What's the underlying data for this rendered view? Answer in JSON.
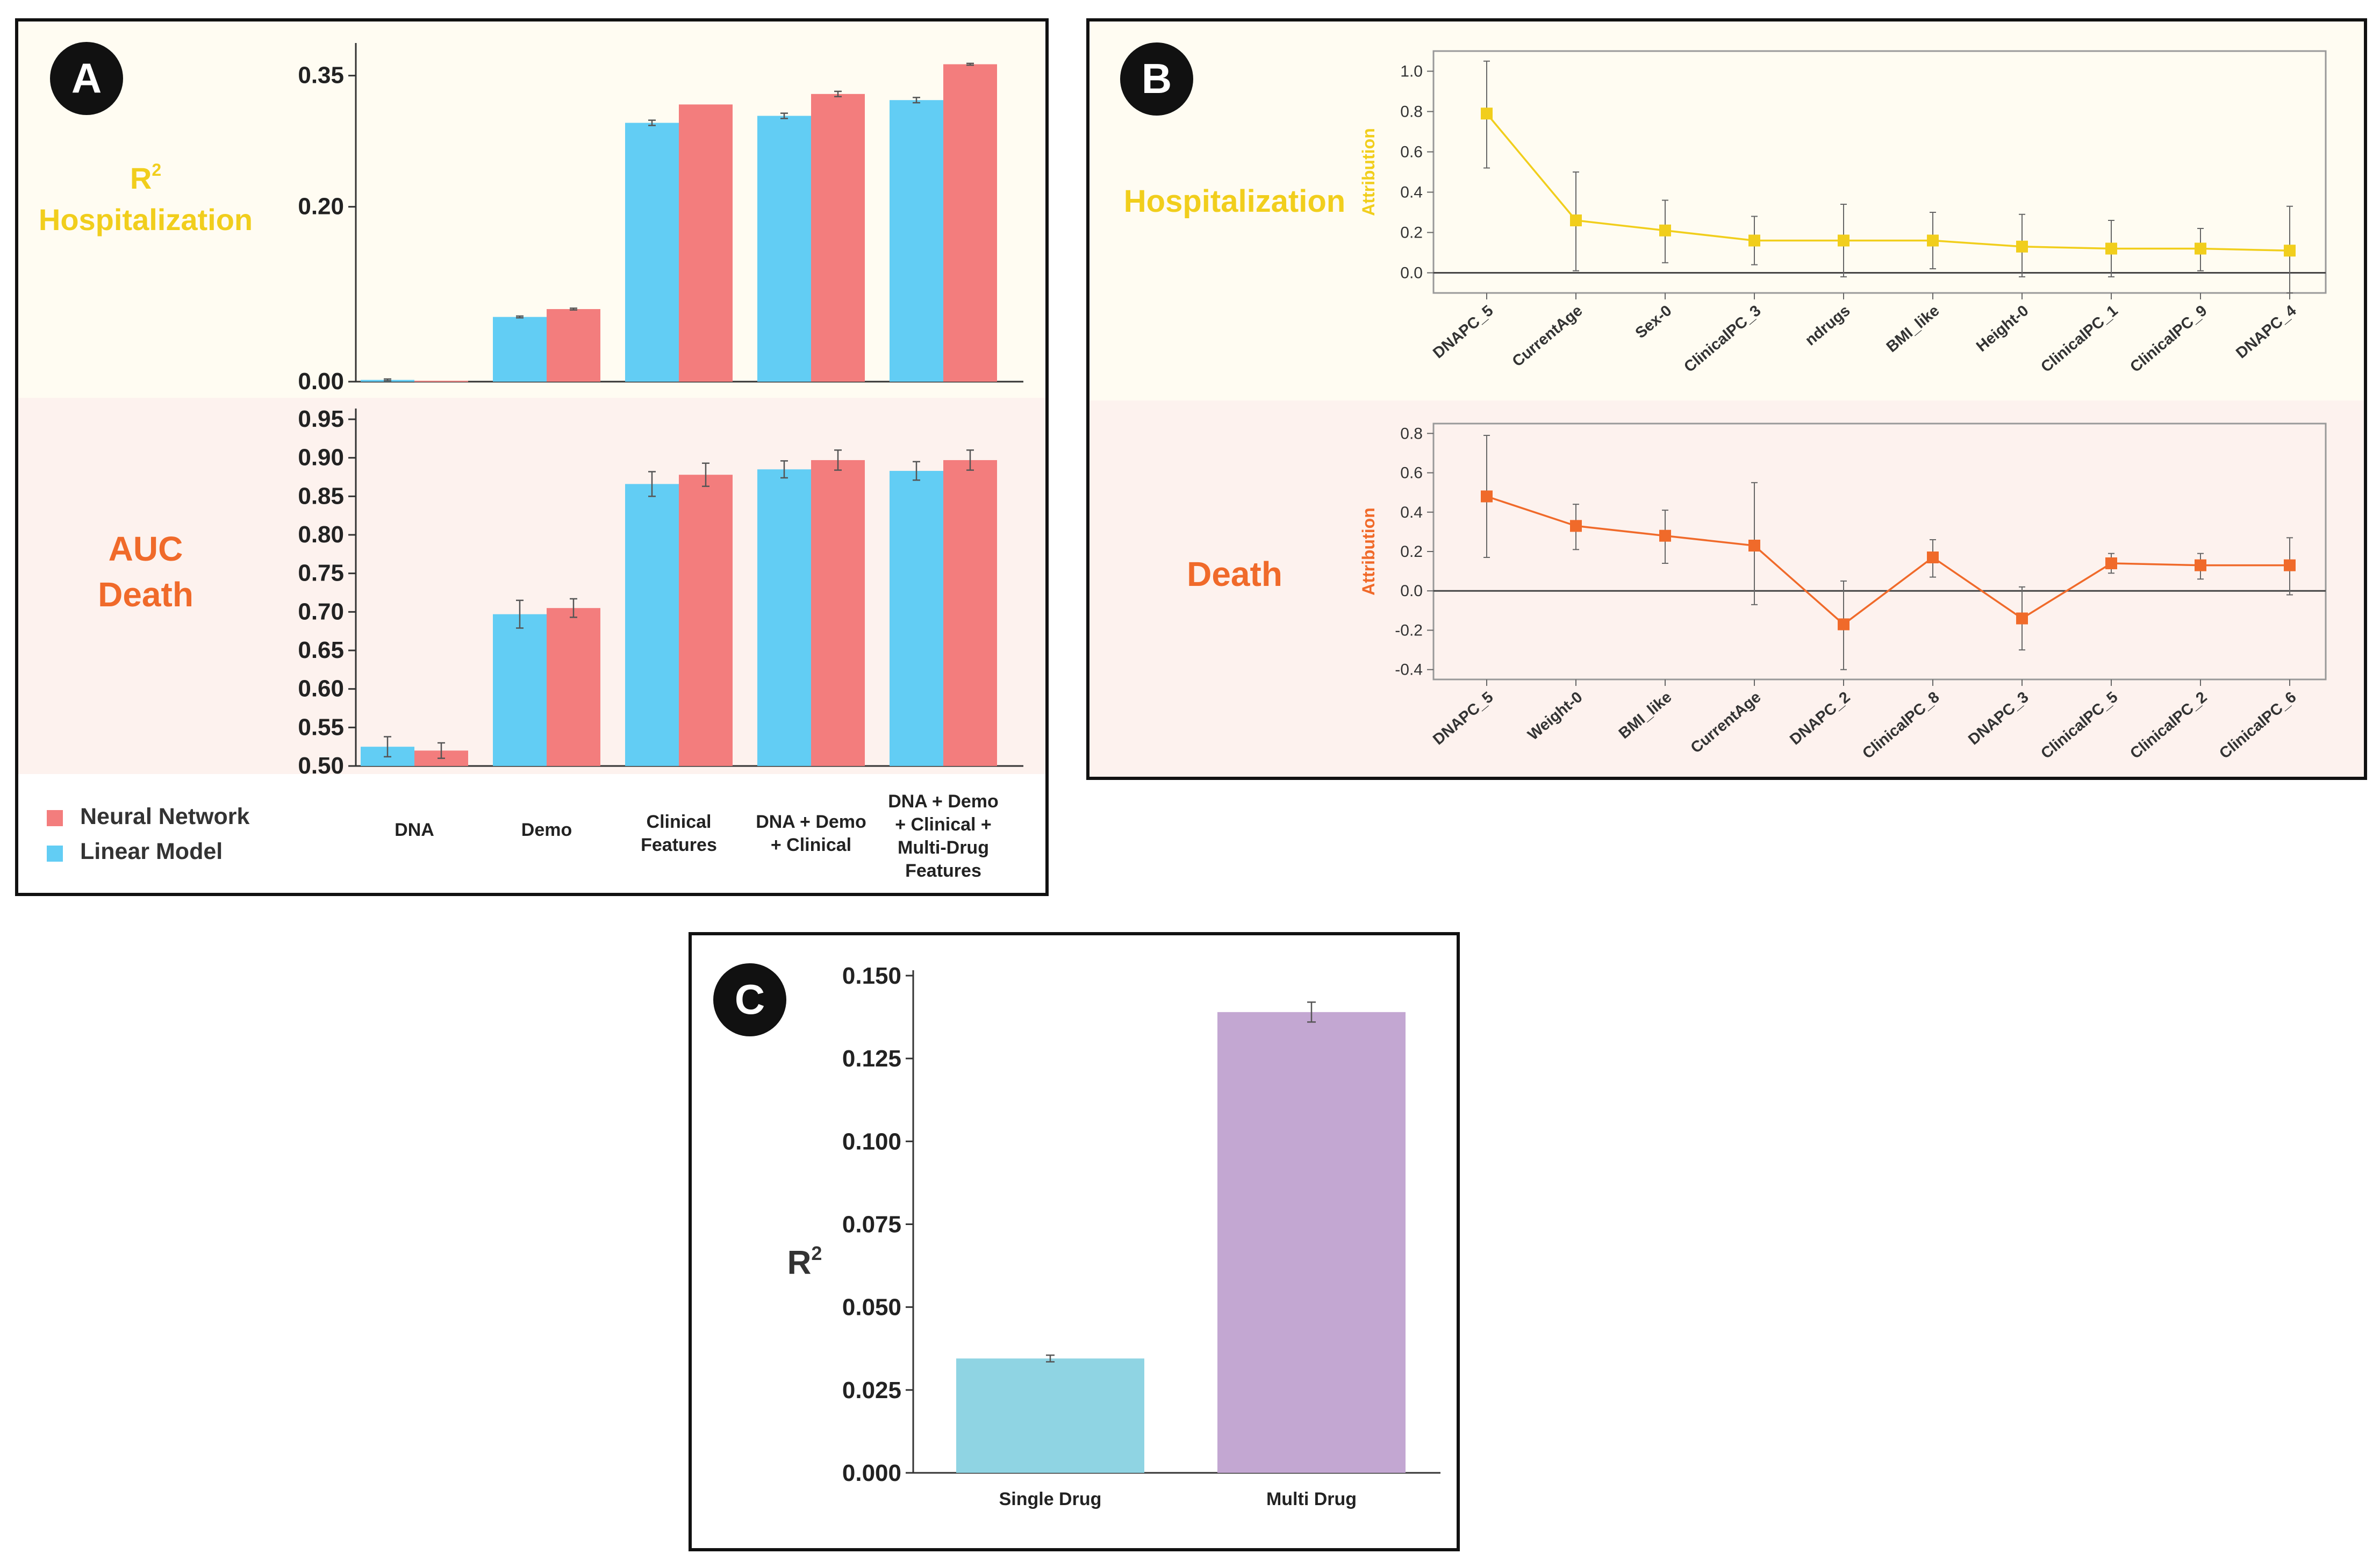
{
  "colors": {
    "linear": "#62cdf4",
    "neural": "#f37d7d",
    "yellow": "#f1ce1c",
    "orange": "#f06a2a",
    "single": "#8fd4e3",
    "multi": "#c3a7d2",
    "top_bg": "#fffcf2",
    "bottom_bg": "#fdf2ee"
  },
  "panel_a": {
    "badge": "A",
    "r2_label": "R",
    "r2_sup": "2",
    "hosp_label": "Hospitalization",
    "auc_label": "AUC",
    "death_label": "Death",
    "legend_neural": "Neural Network",
    "legend_linear": "Linear Model",
    "categories": [
      [
        "DNA"
      ],
      [
        "Demo"
      ],
      [
        "Clinical",
        "Features"
      ],
      [
        "DNA + Demo",
        "+ Clinical"
      ],
      [
        "DNA + Demo",
        "+ Clinical +",
        "Multi-Drug",
        "Features"
      ]
    ]
  },
  "panel_b": {
    "badge": "B",
    "hosp_label": "Hospitalization",
    "death_label": "Death",
    "ylabel": "Attribution"
  },
  "panel_c": {
    "badge": "C",
    "ylabel": "R",
    "ylabel_sup": "2"
  },
  "chart_data": [
    {
      "id": "A-top",
      "type": "bar",
      "title": "R2 Hospitalization",
      "categories": [
        "DNA",
        "Demo",
        "Clinical Features",
        "DNA + Demo + Clinical",
        "DNA + Demo + Clinical + Multi-Drug Features"
      ],
      "series": [
        {
          "name": "Linear Model",
          "values": [
            0.002,
            0.074,
            0.296,
            0.304,
            0.322
          ],
          "errors": [
            0.001,
            0.001,
            0.003,
            0.003,
            0.003
          ]
        },
        {
          "name": "Neural Network",
          "values": [
            0.001,
            0.083,
            0.317,
            0.329,
            0.363
          ],
          "errors": [
            0,
            0.001,
            0,
            0.003,
            0.001
          ]
        }
      ],
      "yticks": [
        "0.00",
        "0.20",
        "0.35"
      ],
      "ylim": [
        0,
        0.375
      ]
    },
    {
      "id": "A-bottom",
      "type": "bar",
      "title": "AUC Death",
      "categories": [
        "DNA",
        "Demo",
        "Clinical Features",
        "DNA + Demo + Clinical",
        "DNA + Demo + Clinical + Multi-Drug Features"
      ],
      "series": [
        {
          "name": "Linear Model",
          "values": [
            0.525,
            0.697,
            0.866,
            0.885,
            0.883
          ],
          "errors": [
            0.013,
            0.018,
            0.016,
            0.011,
            0.012
          ]
        },
        {
          "name": "Neural Network",
          "values": [
            0.52,
            0.705,
            0.878,
            0.897,
            0.897
          ],
          "errors": [
            0.01,
            0.012,
            0.015,
            0.013,
            0.013
          ]
        }
      ],
      "yticks": [
        "0.50",
        "0.55",
        "0.60",
        "0.65",
        "0.70",
        "0.75",
        "0.80",
        "0.85",
        "0.90",
        "0.95"
      ],
      "ylim": [
        0.5,
        0.95
      ]
    },
    {
      "id": "B-top",
      "type": "line",
      "title": "Hospitalization",
      "ylabel": "Attribution",
      "x": [
        "DNAPC_5",
        "CurrentAge",
        "Sex-0",
        "ClinicalPC_3",
        "ndrugs",
        "BMI_like",
        "Height-0",
        "ClinicalPC_1",
        "ClinicalPC_9",
        "DNAPC_4"
      ],
      "values": [
        0.79,
        0.26,
        0.21,
        0.16,
        0.16,
        0.16,
        0.13,
        0.12,
        0.12,
        0.11
      ],
      "err_low": [
        0.52,
        0.01,
        0.05,
        0.04,
        -0.02,
        0.02,
        -0.02,
        -0.02,
        0.01,
        -0.1
      ],
      "err_high": [
        1.05,
        0.5,
        0.36,
        0.28,
        0.34,
        0.3,
        0.29,
        0.26,
        0.22,
        0.33
      ],
      "yticks": [
        "0.0",
        "0.2",
        "0.4",
        "0.6",
        "0.8",
        "1.0"
      ],
      "ylim": [
        -0.1,
        1.1
      ]
    },
    {
      "id": "B-bottom",
      "type": "line",
      "title": "Death",
      "ylabel": "Attribution",
      "x": [
        "DNAPC_5",
        "Weight-0",
        "BMI_like",
        "CurrentAge",
        "DNAPC_2",
        "ClinicalPC_8",
        "DNAPC_3",
        "ClinicalPC_5",
        "ClinicalPC_2",
        "ClinicalPC_6"
      ],
      "values": [
        0.48,
        0.33,
        0.28,
        0.23,
        -0.17,
        0.17,
        -0.14,
        0.14,
        0.13,
        0.13
      ],
      "err_low": [
        0.17,
        0.21,
        0.14,
        -0.07,
        -0.4,
        0.07,
        -0.3,
        0.09,
        0.06,
        -0.02
      ],
      "err_high": [
        0.79,
        0.44,
        0.41,
        0.55,
        0.05,
        0.26,
        0.02,
        0.19,
        0.19,
        0.27
      ],
      "yticks": [
        "-0.4",
        "-0.2",
        "0.0",
        "0.2",
        "0.4",
        "0.6",
        "0.8"
      ],
      "ylim": [
        -0.45,
        0.85
      ]
    },
    {
      "id": "C",
      "type": "bar",
      "ylabel": "R2",
      "categories": [
        "Single Drug",
        "Multi Drug"
      ],
      "values": [
        0.0345,
        0.139
      ],
      "errors": [
        0.001,
        0.003
      ],
      "yticks": [
        "0.000",
        "0.025",
        "0.050",
        "0.075",
        "0.100",
        "0.125",
        "0.150"
      ],
      "ylim": [
        0,
        0.15
      ]
    }
  ]
}
